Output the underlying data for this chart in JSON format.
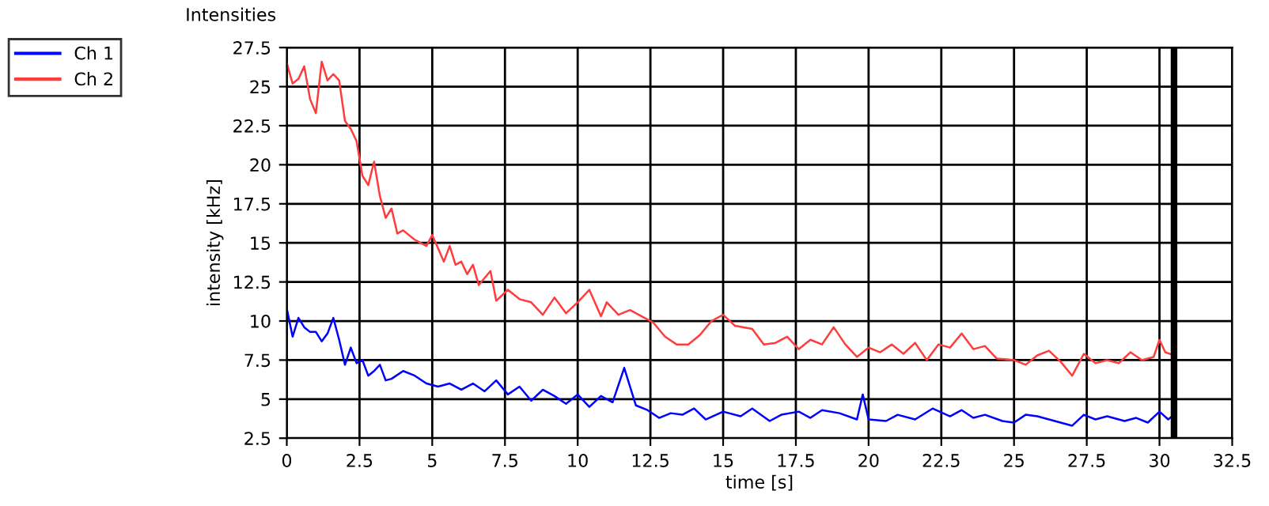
{
  "chart_data": {
    "type": "line",
    "title": "Intensities",
    "xlabel": "time [s]",
    "ylabel": "intensity [kHz]",
    "xlim": [
      0,
      32.5
    ],
    "xticks": [
      0,
      2.5,
      5,
      7.5,
      10,
      12.5,
      15,
      17.5,
      20,
      22.5,
      25,
      27.5,
      30,
      32.5
    ],
    "ylim": [
      2.5,
      27.5
    ],
    "yticks": [
      2.5,
      5,
      7.5,
      10,
      12.5,
      15,
      17.5,
      20,
      22.5,
      25,
      27.5
    ],
    "grid": true,
    "legend": "top left",
    "marker": "none",
    "line_style": "solid",
    "ref_lines": [
      {
        "axis": "x",
        "value": 30.5,
        "label": null,
        "color": "#000000"
      }
    ],
    "series": [
      {
        "name": "Ch 1",
        "color": "#0000ff",
        "x": [
          0,
          0.2,
          0.4,
          0.6,
          0.8,
          1.0,
          1.2,
          1.4,
          1.6,
          1.8,
          2.0,
          2.2,
          2.4,
          2.6,
          2.8,
          3.0,
          3.2,
          3.4,
          3.6,
          4.0,
          4.4,
          4.8,
          5.2,
          5.6,
          6.0,
          6.4,
          6.8,
          7.2,
          7.6,
          8.0,
          8.4,
          8.8,
          9.2,
          9.6,
          10.0,
          10.4,
          10.8,
          11.2,
          11.6,
          12.0,
          12.4,
          12.8,
          13.2,
          13.6,
          14.0,
          14.4,
          15.0,
          15.6,
          16.0,
          16.6,
          17.0,
          17.6,
          18.0,
          18.4,
          19.0,
          19.6,
          19.8,
          20.0,
          20.6,
          21.0,
          21.6,
          22.2,
          22.8,
          23.2,
          23.6,
          24.0,
          24.6,
          25.0,
          25.4,
          25.8,
          26.4,
          27.0,
          27.4,
          27.8,
          28.2,
          28.8,
          29.2,
          29.6,
          30.0,
          30.3,
          30.5
        ],
        "values": [
          10.8,
          9.0,
          10.2,
          9.6,
          9.3,
          9.3,
          8.7,
          9.2,
          10.2,
          8.8,
          7.2,
          8.3,
          7.3,
          7.5,
          6.5,
          6.8,
          7.2,
          6.2,
          6.3,
          6.8,
          6.5,
          6.0,
          5.8,
          6.0,
          5.6,
          6.0,
          5.5,
          6.2,
          5.3,
          5.8,
          4.9,
          5.6,
          5.2,
          4.7,
          5.3,
          4.5,
          5.2,
          4.8,
          7.0,
          4.6,
          4.3,
          3.8,
          4.1,
          4.0,
          4.4,
          3.7,
          4.2,
          3.9,
          4.4,
          3.6,
          4.0,
          4.2,
          3.8,
          4.3,
          4.1,
          3.7,
          5.3,
          3.7,
          3.6,
          4.0,
          3.7,
          4.4,
          3.9,
          4.3,
          3.8,
          4.0,
          3.6,
          3.5,
          4.0,
          3.9,
          3.6,
          3.3,
          4.0,
          3.7,
          3.9,
          3.6,
          3.8,
          3.5,
          4.2,
          3.7,
          4.0
        ]
      },
      {
        "name": "Ch 2",
        "color": "#ff3c3c",
        "x": [
          0,
          0.2,
          0.4,
          0.6,
          0.8,
          1.0,
          1.2,
          1.4,
          1.6,
          1.8,
          2.0,
          2.2,
          2.4,
          2.6,
          2.8,
          3.0,
          3.2,
          3.4,
          3.6,
          3.8,
          4.0,
          4.4,
          4.8,
          5.0,
          5.4,
          5.6,
          5.8,
          6.0,
          6.2,
          6.4,
          6.6,
          7.0,
          7.2,
          7.6,
          8.0,
          8.4,
          8.8,
          9.2,
          9.6,
          10.0,
          10.4,
          10.8,
          11.0,
          11.4,
          11.8,
          12.2,
          12.6,
          13.0,
          13.4,
          13.8,
          14.2,
          14.6,
          15.0,
          15.4,
          16.0,
          16.4,
          16.8,
          17.2,
          17.6,
          18.0,
          18.4,
          18.8,
          19.2,
          19.6,
          20.0,
          20.4,
          20.8,
          21.2,
          21.6,
          22.0,
          22.4,
          22.8,
          23.2,
          23.6,
          24.0,
          24.4,
          25.0,
          25.4,
          25.8,
          26.2,
          26.6,
          27.0,
          27.4,
          27.8,
          28.2,
          28.6,
          29.0,
          29.4,
          29.8,
          30.0,
          30.2,
          30.5
        ],
        "values": [
          26.5,
          25.2,
          25.5,
          26.3,
          24.2,
          23.3,
          26.6,
          25.4,
          25.8,
          25.4,
          22.8,
          22.3,
          21.5,
          19.3,
          18.7,
          20.2,
          18.0,
          16.6,
          17.2,
          15.6,
          15.8,
          15.2,
          14.8,
          15.5,
          13.8,
          14.8,
          13.6,
          13.8,
          13.0,
          13.6,
          12.3,
          13.2,
          11.3,
          12.0,
          11.4,
          11.2,
          10.4,
          11.5,
          10.5,
          11.2,
          12.0,
          10.3,
          11.2,
          10.4,
          10.7,
          10.3,
          9.9,
          9.0,
          8.5,
          8.5,
          9.1,
          10.0,
          10.4,
          9.7,
          9.5,
          8.5,
          8.6,
          9.0,
          8.2,
          8.8,
          8.5,
          9.6,
          8.5,
          7.7,
          8.3,
          8.0,
          8.5,
          7.9,
          8.6,
          7.5,
          8.5,
          8.3,
          9.2,
          8.2,
          8.4,
          7.6,
          7.5,
          7.2,
          7.8,
          8.1,
          7.4,
          6.5,
          7.9,
          7.3,
          7.5,
          7.3,
          8.0,
          7.5,
          7.7,
          8.8,
          8.0,
          7.8
        ]
      }
    ]
  }
}
